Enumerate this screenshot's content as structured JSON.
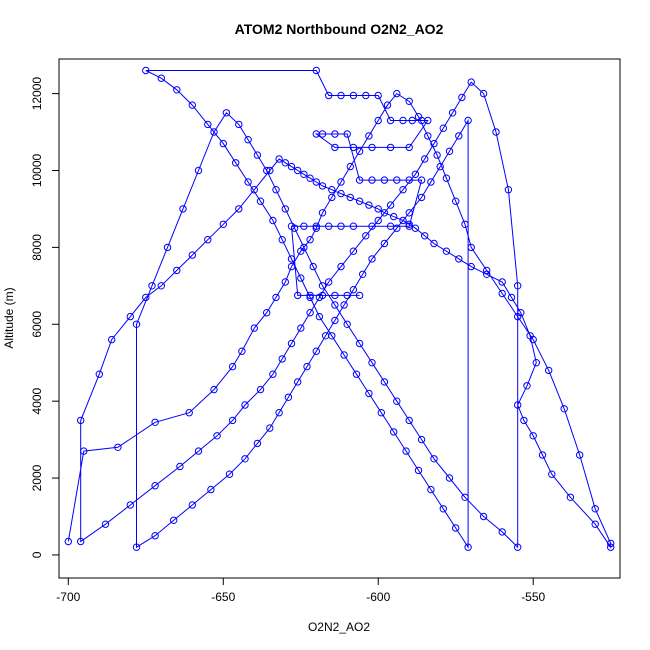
{
  "chart_data": {
    "type": "line",
    "title": "ATOM2 Northbound O2N2_AO2",
    "xlabel": "O2N2_AO2",
    "ylabel": "Altitude (m)",
    "xlim": [
      -703,
      -522
    ],
    "ylim": [
      -600,
      12900
    ],
    "x_ticks": [
      -700,
      -650,
      -600,
      -550
    ],
    "y_ticks": [
      0,
      2000,
      4000,
      6000,
      8000,
      10000,
      12000
    ],
    "x_tick_labels": [
      "-700",
      "-650",
      "-600",
      "-550"
    ],
    "y_tick_labels": [
      "0",
      "2000",
      "4000",
      "6000",
      "8000",
      "10000",
      "12000"
    ],
    "series": [
      {
        "color": "#0000ff",
        "marker": "open-circle",
        "x": [
          -700,
          -695,
          -684,
          -672,
          -661,
          -653,
          -647,
          -644,
          -640,
          -636,
          -633,
          -630,
          -628,
          -625,
          -622,
          -620,
          -618,
          -615,
          -612,
          -609,
          -606,
          -603,
          -600,
          -597,
          -594,
          -590,
          -587,
          -584,
          -581,
          -578,
          -575,
          -572,
          -570,
          -565,
          -560,
          -555,
          -550,
          -545,
          -540,
          -535,
          -530,
          -525,
          -525,
          -530,
          -538,
          -544,
          -547,
          -550,
          -553,
          -555,
          -552,
          -549,
          -551,
          -554,
          -557,
          -560,
          -565,
          -570,
          -574,
          -578,
          -582,
          -585,
          -588,
          -590,
          -592,
          -595,
          -598,
          -600,
          -603,
          -606,
          -609,
          -612,
          -615,
          -618,
          -620,
          -622,
          -624,
          -626,
          -628,
          -630,
          -632,
          -635,
          -640,
          -645,
          -650,
          -655,
          -660,
          -665,
          -670,
          -675,
          -680,
          -686,
          -690,
          -696,
          -696,
          -688,
          -680,
          -672,
          -664,
          -658,
          -652,
          -647,
          -643,
          -638,
          -634,
          -631,
          -628,
          -625,
          -622,
          -619,
          -616,
          -612,
          -608,
          -604,
          -600,
          -596,
          -592,
          -588,
          -585,
          -582,
          -579,
          -576,
          -573,
          -570,
          -566,
          -562,
          -558,
          -555,
          -555,
          -560,
          -566,
          -572,
          -577,
          -582,
          -586,
          -590,
          -594,
          -598,
          -602,
          -606,
          -610,
          -614,
          -618,
          -621,
          -624,
          -627,
          -630,
          -633,
          -636,
          -639,
          -642,
          -645,
          -649,
          -653,
          -658,
          -663,
          -668,
          -673,
          -678,
          -678,
          -672,
          -666,
          -660,
          -654,
          -648,
          -643,
          -639,
          -635,
          -632,
          -629,
          -626,
          -623,
          -620,
          -617,
          -614,
          -611,
          -608,
          -605,
          -602,
          -598,
          -594,
          -590,
          -586,
          -583,
          -580,
          -577,
          -574,
          -571,
          -571,
          -575,
          -579,
          -583,
          -587,
          -591,
          -595,
          -599,
          -603,
          -607,
          -611,
          -615,
          -619,
          -622,
          -625,
          -628,
          -631,
          -634,
          -638,
          -642,
          -646,
          -650,
          -655,
          -660,
          -665,
          -670,
          -675,
          -620,
          -616,
          -612,
          -608,
          -604,
          -600,
          -596,
          -592,
          -589,
          -586,
          -584,
          -590,
          -596,
          -602,
          -608,
          -614,
          -620,
          -618,
          -614,
          -610,
          -606,
          -602,
          -598,
          -594,
          -590,
          -586,
          -590,
          -596,
          -602,
          -608,
          -612,
          -616,
          -620,
          -624,
          -628,
          -626,
          -622,
          -618,
          -614,
          -610,
          -606
        ],
        "y": [
          350,
          2700,
          2800,
          3450,
          3700,
          4300,
          4900,
          5300,
          5900,
          6300,
          6700,
          7100,
          7500,
          7900,
          8200,
          8500,
          8900,
          9300,
          9700,
          10100,
          10500,
          10900,
          11300,
          11700,
          12000,
          11800,
          11400,
          10900,
          10400,
          9800,
          9200,
          8600,
          8000,
          7400,
          6800,
          6200,
          5600,
          4800,
          3800,
          2600,
          1200,
          300,
          200,
          800,
          1500,
          2100,
          2600,
          3100,
          3500,
          3900,
          4400,
          5000,
          5700,
          6300,
          6700,
          7100,
          7300,
          7500,
          7700,
          7900,
          8100,
          8300,
          8500,
          8600,
          8700,
          8800,
          8900,
          9000,
          9100,
          9200,
          9300,
          9400,
          9500,
          9600,
          9700,
          9800,
          9900,
          10000,
          10100,
          10200,
          10300,
          10000,
          9500,
          9000,
          8600,
          8200,
          7800,
          7400,
          7000,
          6700,
          6200,
          5600,
          4700,
          3500,
          350,
          800,
          1300,
          1800,
          2300,
          2700,
          3100,
          3500,
          3900,
          4300,
          4700,
          5100,
          5500,
          5900,
          6300,
          6700,
          7100,
          7500,
          7900,
          8300,
          8700,
          9100,
          9500,
          9900,
          10300,
          10700,
          11100,
          11500,
          11900,
          12300,
          12000,
          11000,
          9500,
          7000,
          200,
          600,
          1000,
          1500,
          2000,
          2500,
          3000,
          3500,
          4000,
          4500,
          5000,
          5500,
          6000,
          6500,
          7000,
          7500,
          8000,
          8500,
          9000,
          9500,
          10000,
          10400,
          10800,
          11200,
          11500,
          11000,
          10000,
          9000,
          8000,
          7000,
          6000,
          200,
          500,
          900,
          1300,
          1700,
          2100,
          2500,
          2900,
          3300,
          3700,
          4100,
          4500,
          4900,
          5300,
          5700,
          6100,
          6500,
          6900,
          7300,
          7700,
          8100,
          8500,
          8900,
          9300,
          9700,
          10100,
          10500,
          10900,
          11300,
          200,
          700,
          1200,
          1700,
          2200,
          2700,
          3200,
          3700,
          4200,
          4700,
          5200,
          5700,
          6200,
          6700,
          7200,
          7700,
          8200,
          8700,
          9200,
          9700,
          10200,
          10700,
          11200,
          11700,
          12100,
          12400,
          12600,
          12600,
          11950,
          11950,
          11950,
          11950,
          11950,
          11300,
          11300,
          11300,
          11300,
          11300,
          10600,
          10600,
          10600,
          10600,
          10600,
          10950,
          10950,
          10950,
          10950,
          9750,
          9750,
          9750,
          9750,
          9750,
          9750,
          8550,
          8550,
          8550,
          8550,
          8550,
          8550,
          8550,
          8550,
          8550,
          6750,
          6750,
          6750,
          6750,
          6750,
          6750
        ]
      }
    ]
  }
}
